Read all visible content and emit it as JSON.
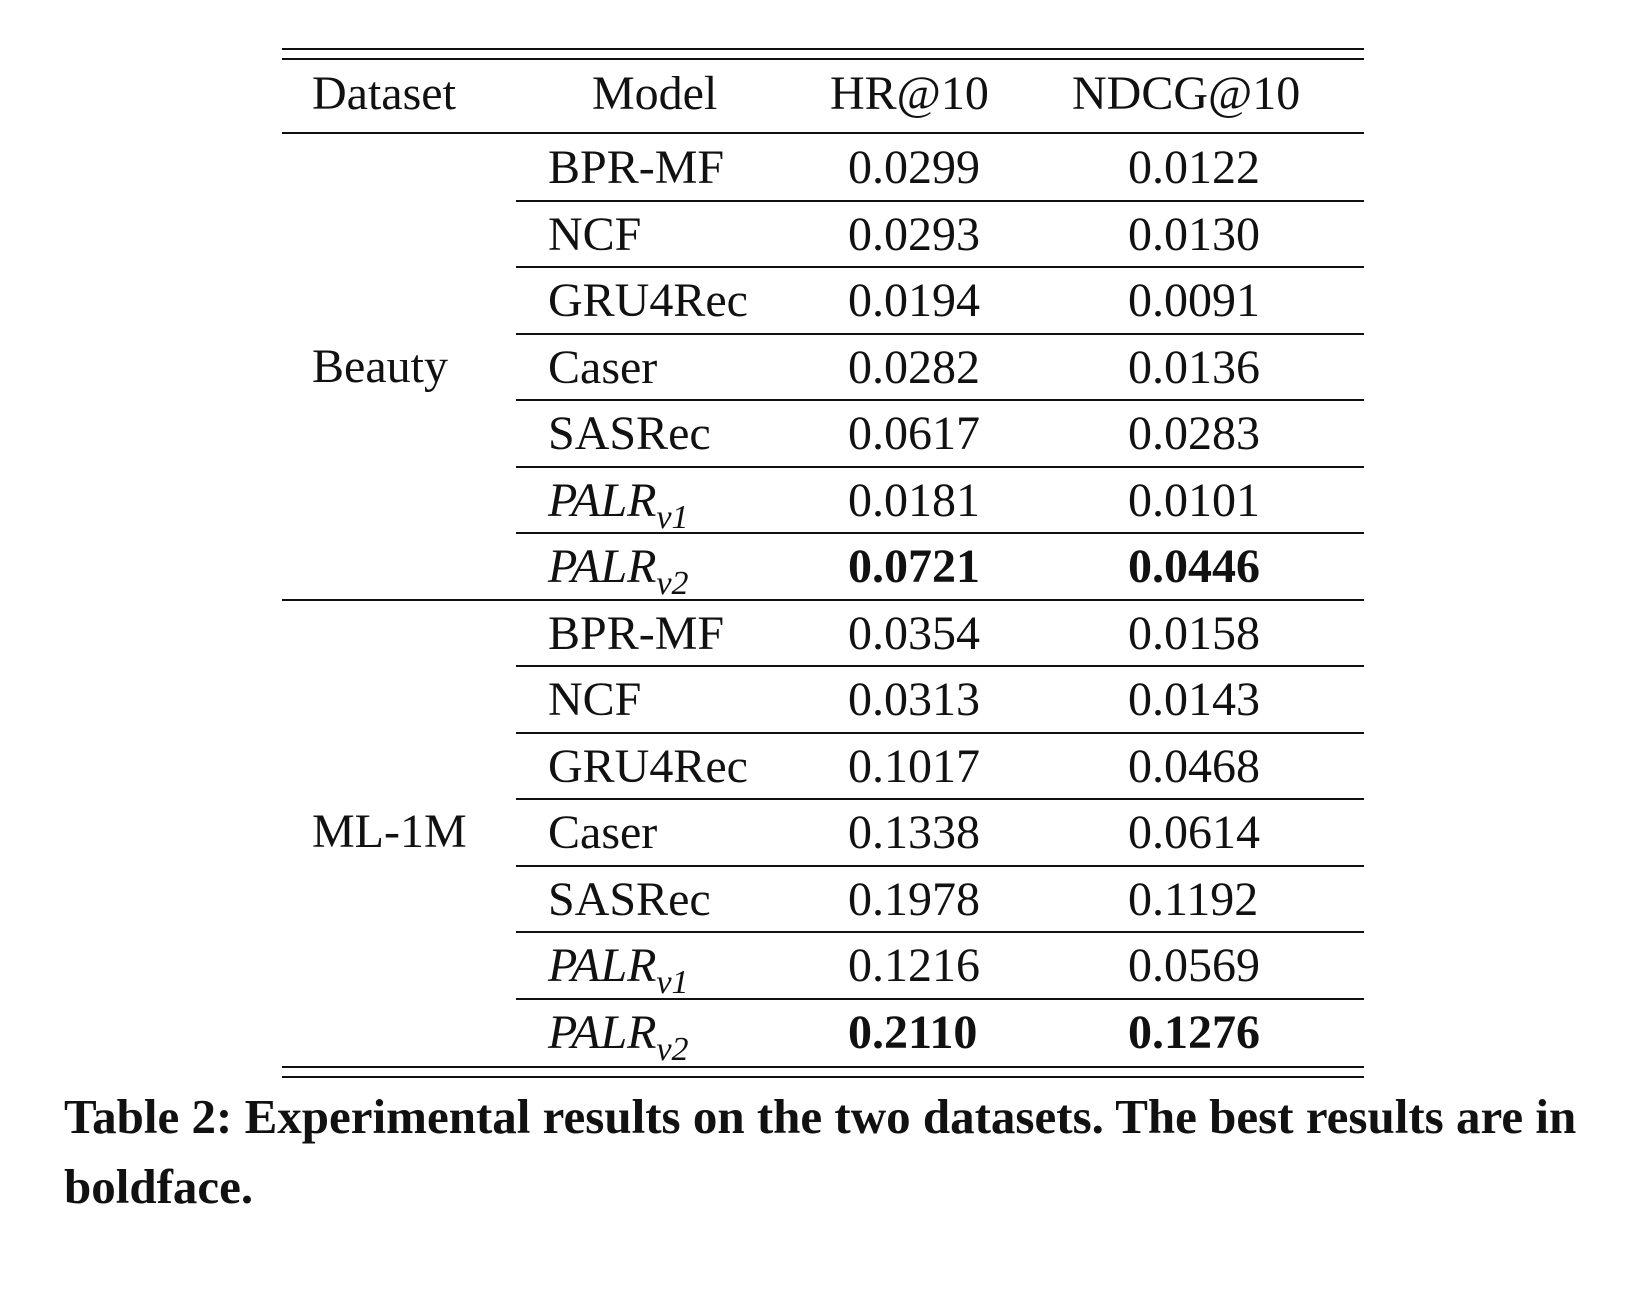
{
  "table": {
    "headers": {
      "dataset": "Dataset",
      "model": "Model",
      "hr": "HR@10",
      "ndcg": "NDCG@10"
    },
    "groups": [
      {
        "dataset": "Beauty",
        "rows": [
          {
            "model": "BPR-MF",
            "model_sub": "",
            "hr": "0.0299",
            "ndcg": "0.0122",
            "best": false
          },
          {
            "model": "NCF",
            "model_sub": "",
            "hr": "0.0293",
            "ndcg": "0.0130",
            "best": false
          },
          {
            "model": "GRU4Rec",
            "model_sub": "",
            "hr": "0.0194",
            "ndcg": "0.0091",
            "best": false
          },
          {
            "model": "Caser",
            "model_sub": "",
            "hr": "0.0282",
            "ndcg": "0.0136",
            "best": false
          },
          {
            "model": "SASRec",
            "model_sub": "",
            "hr": "0.0617",
            "ndcg": "0.0283",
            "best": false
          },
          {
            "model": "PALR",
            "model_sub": "v1",
            "hr": "0.0181",
            "ndcg": "0.0101",
            "best": false
          },
          {
            "model": "PALR",
            "model_sub": "v2",
            "hr": "0.0721",
            "ndcg": "0.0446",
            "best": true
          }
        ]
      },
      {
        "dataset": "ML-1M",
        "rows": [
          {
            "model": "BPR-MF",
            "model_sub": "",
            "hr": "0.0354",
            "ndcg": "0.0158",
            "best": false
          },
          {
            "model": "NCF",
            "model_sub": "",
            "hr": "0.0313",
            "ndcg": "0.0143",
            "best": false
          },
          {
            "model": "GRU4Rec",
            "model_sub": "",
            "hr": "0.1017",
            "ndcg": "0.0468",
            "best": false
          },
          {
            "model": "Caser",
            "model_sub": "",
            "hr": "0.1338",
            "ndcg": "0.0614",
            "best": false
          },
          {
            "model": "SASRec",
            "model_sub": "",
            "hr": "0.1978",
            "ndcg": "0.1192",
            "best": false
          },
          {
            "model": "PALR",
            "model_sub": "v1",
            "hr": "0.1216",
            "ndcg": "0.0569",
            "best": false
          },
          {
            "model": "PALR",
            "model_sub": "v2",
            "hr": "0.2110",
            "ndcg": "0.1276",
            "best": true
          }
        ]
      }
    ]
  },
  "caption": "Table 2: Experimental results on the two datasets. The best results are in boldface."
}
